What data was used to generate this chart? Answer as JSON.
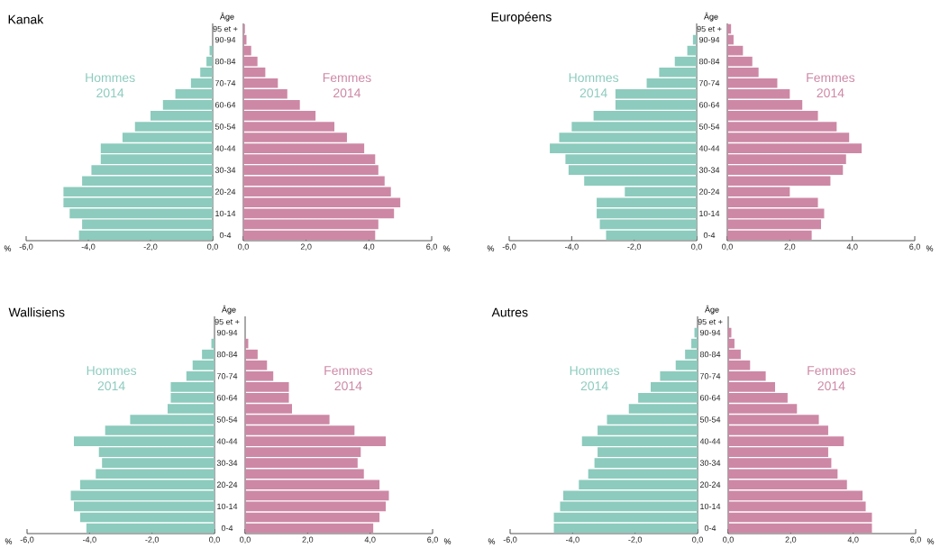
{
  "chart_data": [
    {
      "type": "bar",
      "orientation": "horizontal",
      "title": "Kanak",
      "ylabel": "Âge",
      "xlabel": "%",
      "categories": [
        "95 et +",
        "90-94",
        null,
        "80-84",
        null,
        "70-74",
        null,
        "60-64",
        null,
        "50-54",
        null,
        "40-44",
        null,
        "30-34",
        null,
        "20-24",
        null,
        "10-14",
        null,
        "0-4"
      ],
      "xlim": [
        -6,
        0
      ],
      "xticks": [
        {
          "value": -6,
          "label": "-6,0"
        },
        {
          "value": -4,
          "label": "-4,0"
        },
        {
          "value": -2,
          "label": "-2,0"
        },
        {
          "value": 0,
          "label": "0,0"
        }
      ],
      "series": [
        {
          "name": "Hommes 2014",
          "color": "#8ccbbd",
          "values": [
            0,
            0,
            -0.1,
            -0.2,
            -0.4,
            -0.7,
            -1.2,
            -1.6,
            -2.0,
            -2.5,
            -2.9,
            -3.6,
            -3.6,
            -3.9,
            -4.2,
            -4.8,
            -4.8,
            -4.6,
            -4.2,
            -4.3
          ]
        }
      ]
    },
    {
      "type": "bar",
      "orientation": "horizontal",
      "xlabel": "%",
      "categories": [
        null,
        null,
        null,
        null,
        null,
        null,
        null,
        null,
        null,
        null,
        null,
        null,
        null,
        null,
        null,
        null,
        null,
        null,
        null,
        null
      ],
      "xlim": [
        0,
        6
      ],
      "xticks": [
        {
          "value": 0,
          "label": "0,0"
        },
        {
          "value": 2,
          "label": "2,0"
        },
        {
          "value": 4,
          "label": "4,0"
        },
        {
          "value": 6,
          "label": "6,0"
        }
      ],
      "tick_labels": "x",
      "series": [
        {
          "name": "Femmes 2014",
          "color": "#cd88a5",
          "values": [
            0.05,
            0.1,
            0.25,
            0.45,
            0.7,
            1.1,
            1.4,
            1.8,
            2.3,
            2.9,
            3.3,
            3.85,
            4.2,
            4.3,
            4.5,
            4.7,
            5.0,
            4.8,
            4.3,
            4.2
          ]
        }
      ]
    },
    {
      "type": "bar",
      "orientation": "horizontal",
      "title": "Européens",
      "ylabel": "Âge",
      "xlabel": "%",
      "categories": [
        "95 et +",
        "90-94",
        null,
        "80-84",
        null,
        "70-74",
        null,
        "60-64",
        null,
        "50-54",
        null,
        "40-44",
        null,
        "30-34",
        null,
        "20-24",
        null,
        "10-14",
        null,
        "0-4"
      ],
      "xlim": [
        -6,
        0
      ],
      "xticks": [
        {
          "value": -6,
          "label": "-6,0"
        },
        {
          "value": -4,
          "label": "-4,0"
        },
        {
          "value": -2,
          "label": "-2,0"
        },
        {
          "value": 0,
          "label": "0,0"
        }
      ],
      "series": [
        {
          "name": "Hommes 2014",
          "color": "#8ccbbd",
          "values": [
            0,
            -0.12,
            -0.3,
            -0.7,
            -1.2,
            -1.6,
            -2.6,
            -2.6,
            -3.3,
            -4.0,
            -4.4,
            -4.7,
            -4.2,
            -4.1,
            -3.6,
            -2.3,
            -3.2,
            -3.2,
            -3.1,
            -2.9
          ]
        }
      ]
    },
    {
      "type": "bar",
      "orientation": "horizontal",
      "xlabel": "%",
      "categories": [
        null,
        null,
        null,
        null,
        null,
        null,
        null,
        null,
        null,
        null,
        null,
        null,
        null,
        null,
        null,
        null,
        null,
        null,
        null,
        null
      ],
      "xlim": [
        0,
        6
      ],
      "xticks": [
        {
          "value": 0,
          "label": "0,0"
        },
        {
          "value": 2,
          "label": "2,0"
        },
        {
          "value": 4,
          "label": "4,0"
        },
        {
          "value": 6,
          "label": "6,0"
        }
      ],
      "tick_labels": "x",
      "series": [
        {
          "name": "Femmes 2014",
          "color": "#cd88a5",
          "values": [
            0.12,
            0.2,
            0.5,
            0.8,
            1.0,
            1.6,
            2.0,
            2.4,
            2.9,
            3.5,
            3.9,
            4.3,
            3.8,
            3.7,
            3.3,
            2.0,
            2.9,
            3.1,
            3.0,
            2.7
          ]
        }
      ]
    },
    {
      "type": "bar",
      "orientation": "horizontal",
      "title": "Wallisiens",
      "ylabel": "Âge",
      "xlabel": "%",
      "categories": [
        "95 et +",
        "90-94",
        null,
        "80-84",
        null,
        "70-74",
        null,
        "60-64",
        null,
        "50-54",
        null,
        "40-44",
        null,
        "30-34",
        null,
        "20-24",
        null,
        "10-14",
        null,
        "0-4"
      ],
      "xlim": [
        -6,
        0
      ],
      "xticks": [
        {
          "value": -6,
          "label": "-6,0"
        },
        {
          "value": -4,
          "label": "-4,0"
        },
        {
          "value": -2,
          "label": "-2,0"
        },
        {
          "value": 0,
          "label": "0,0"
        }
      ],
      "series": [
        {
          "name": "Hommes 2014",
          "color": "#8ccbbd",
          "values": [
            0,
            0,
            -0.1,
            -0.4,
            -0.7,
            -0.9,
            -1.4,
            -1.4,
            -1.5,
            -2.7,
            -3.5,
            -4.5,
            -3.7,
            -3.6,
            -3.8,
            -4.3,
            -4.6,
            -4.5,
            -4.3,
            -4.1
          ]
        }
      ]
    },
    {
      "type": "bar",
      "orientation": "horizontal",
      "xlabel": "%",
      "categories": [
        null,
        null,
        null,
        null,
        null,
        null,
        null,
        null,
        null,
        null,
        null,
        null,
        null,
        null,
        null,
        null,
        null,
        null,
        null,
        null
      ],
      "xlim": [
        0,
        6
      ],
      "xticks": [
        {
          "value": 0,
          "label": "0,0"
        },
        {
          "value": 2,
          "label": "2,0"
        },
        {
          "value": 4,
          "label": "4,0"
        },
        {
          "value": 6,
          "label": "6,0"
        }
      ],
      "tick_labels": "x",
      "series": [
        {
          "name": "Femmes 2014",
          "color": "#cd88a5",
          "values": [
            0,
            0,
            0.1,
            0.4,
            0.7,
            0.9,
            1.4,
            1.4,
            1.5,
            2.7,
            3.5,
            4.5,
            3.7,
            3.6,
            3.8,
            4.3,
            4.6,
            4.5,
            4.3,
            4.1
          ]
        }
      ]
    },
    {
      "type": "bar",
      "orientation": "horizontal",
      "title": "Autres",
      "ylabel": "Âge",
      "xlabel": "%",
      "categories": [
        "95 et +",
        "90-94",
        null,
        "80-84",
        null,
        "70-74",
        null,
        "60-64",
        null,
        "50-54",
        null,
        "40-44",
        null,
        "30-34",
        null,
        "20-24",
        null,
        "10-14",
        null,
        "0-4"
      ],
      "xlim": [
        -6,
        0
      ],
      "xticks": [
        {
          "value": -6,
          "label": "-6,0"
        },
        {
          "value": -4,
          "label": "-4,0"
        },
        {
          "value": -2,
          "label": "-2,0"
        },
        {
          "value": 0,
          "label": "0,0"
        }
      ],
      "series": [
        {
          "name": "Hommes 2014",
          "color": "#8ccbbd",
          "values": [
            0,
            -0.1,
            -0.2,
            -0.4,
            -0.7,
            -1.2,
            -1.5,
            -1.9,
            -2.2,
            -2.9,
            -3.2,
            -3.7,
            -3.2,
            -3.3,
            -3.5,
            -3.8,
            -4.3,
            -4.4,
            -4.6,
            -4.6
          ]
        }
      ]
    },
    {
      "type": "bar",
      "orientation": "horizontal",
      "xlabel": "%",
      "categories": [
        null,
        null,
        null,
        null,
        null,
        null,
        null,
        null,
        null,
        null,
        null,
        null,
        null,
        null,
        null,
        null,
        null,
        null,
        null,
        null
      ],
      "xlim": [
        0,
        6
      ],
      "xticks": [
        {
          "value": 0,
          "label": "0,0"
        },
        {
          "value": 2,
          "label": "2,0"
        },
        {
          "value": 4,
          "label": "4,0"
        },
        {
          "value": 6,
          "label": "6,0"
        }
      ],
      "tick_labels": "x",
      "series": [
        {
          "name": "Femmes 2014",
          "color": "#cd88a5",
          "values": [
            0,
            0.1,
            0.2,
            0.4,
            0.7,
            1.2,
            1.5,
            1.9,
            2.2,
            2.9,
            3.2,
            3.7,
            3.2,
            3.3,
            3.5,
            3.8,
            4.3,
            4.4,
            4.6,
            4.6
          ]
        }
      ]
    }
  ]
}
